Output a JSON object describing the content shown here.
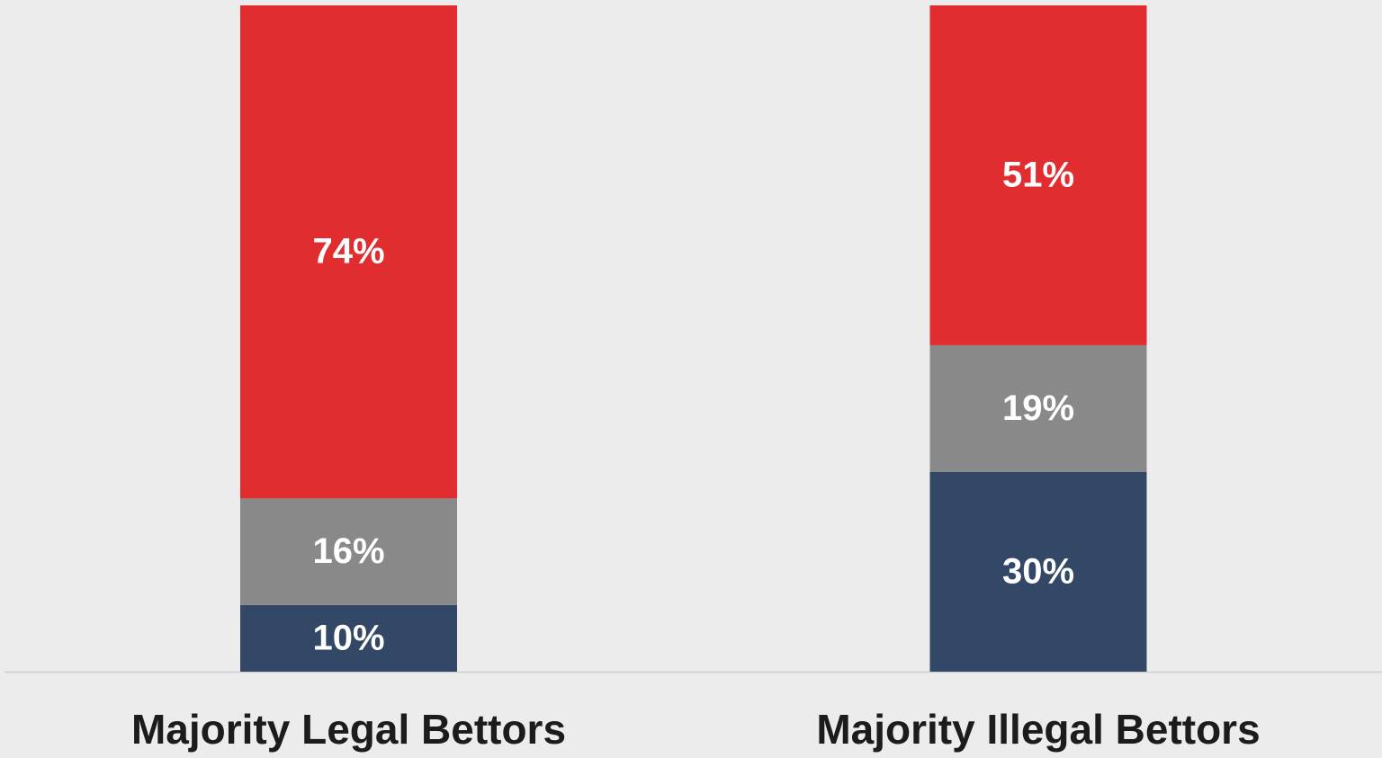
{
  "chart_data": {
    "type": "stacked_bar",
    "categories": [
      "Majority Legal Bettors",
      "Majority Illegal Bettors"
    ],
    "series": [
      {
        "color": "#334766",
        "values": [
          10,
          30
        ],
        "value_labels": [
          "10%",
          "30%"
        ]
      },
      {
        "color": "#898989",
        "values": [
          16,
          19
        ],
        "value_labels": [
          "16%",
          "19%"
        ]
      },
      {
        "color": "#e12d30",
        "values": [
          74,
          51
        ],
        "value_labels": [
          "74%",
          "51%"
        ]
      }
    ],
    "ylim": [
      0,
      100
    ]
  }
}
